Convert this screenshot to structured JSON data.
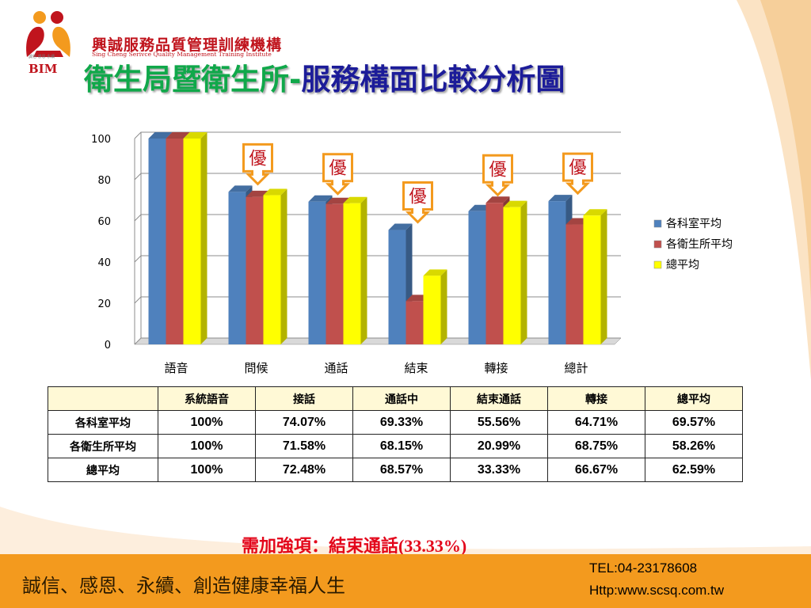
{
  "logo": {
    "name_cn": "興誠服務品質管理訓練機構",
    "name_en": "Sing Cheng Serivce Quality Management Training Institute",
    "abbr": "BIM",
    "tagline": "誠信‧感恩‧永續"
  },
  "title": {
    "part1": "衛生局暨衛生所",
    "dash": "-",
    "part2": "服務構面比較分析圖"
  },
  "chart_data": {
    "type": "bar",
    "categories": [
      "語音",
      "問候",
      "通話",
      "結束",
      "轉接",
      "總計"
    ],
    "series": [
      {
        "name": "各科室平均",
        "values": [
          100,
          74.07,
          69.33,
          55.56,
          64.71,
          69.57
        ],
        "color": "#4f81bd"
      },
      {
        "name": "各衛生所平均",
        "values": [
          100,
          71.58,
          68.15,
          20.99,
          68.75,
          58.26
        ],
        "color": "#c0504d"
      },
      {
        "name": "總平均",
        "values": [
          100,
          72.48,
          68.57,
          33.33,
          66.67,
          62.59
        ],
        "color": "#ffff00"
      }
    ],
    "ylim": [
      0,
      100
    ],
    "yticks": [
      0,
      20,
      40,
      60,
      80,
      100
    ],
    "grid": true,
    "legend": "right",
    "annotations": [
      {
        "text": "優",
        "category": "問候"
      },
      {
        "text": "優",
        "category": "通話"
      },
      {
        "text": "優",
        "category": "結束"
      },
      {
        "text": "優",
        "category": "轉接"
      },
      {
        "text": "優",
        "category": "總計"
      }
    ]
  },
  "table": {
    "headers": [
      "",
      "系統語音",
      "接話",
      "通話中",
      "結束通話",
      "轉接",
      "總平均"
    ],
    "rows": [
      {
        "label": "各科室平均",
        "cells": [
          "100%",
          "74.07%",
          "69.33%",
          "55.56%",
          "64.71%",
          "69.57%"
        ]
      },
      {
        "label": "各衛生所平均",
        "cells": [
          "100%",
          "71.58%",
          "68.15%",
          "20.99%",
          "68.75%",
          "58.26%"
        ]
      },
      {
        "label": "總平均",
        "cells": [
          "100%",
          "72.48%",
          "68.57%",
          "33.33%",
          "66.67%",
          "62.59%"
        ]
      }
    ]
  },
  "note": {
    "label": "需加強項：結束通話",
    "value": "(33.33%)"
  },
  "footer": {
    "slogan": "誠信、感恩、永續、創造健康幸福人生",
    "tel": "TEL:04-23178608",
    "url": "Http:www.scsq.com.tw"
  },
  "colors": {
    "footer_bg": "#f39a1e",
    "title_green": "#10a84a",
    "title_blue": "#1c1c99",
    "note_red": "#e3061a",
    "callout_orange": "#f39a1e"
  }
}
